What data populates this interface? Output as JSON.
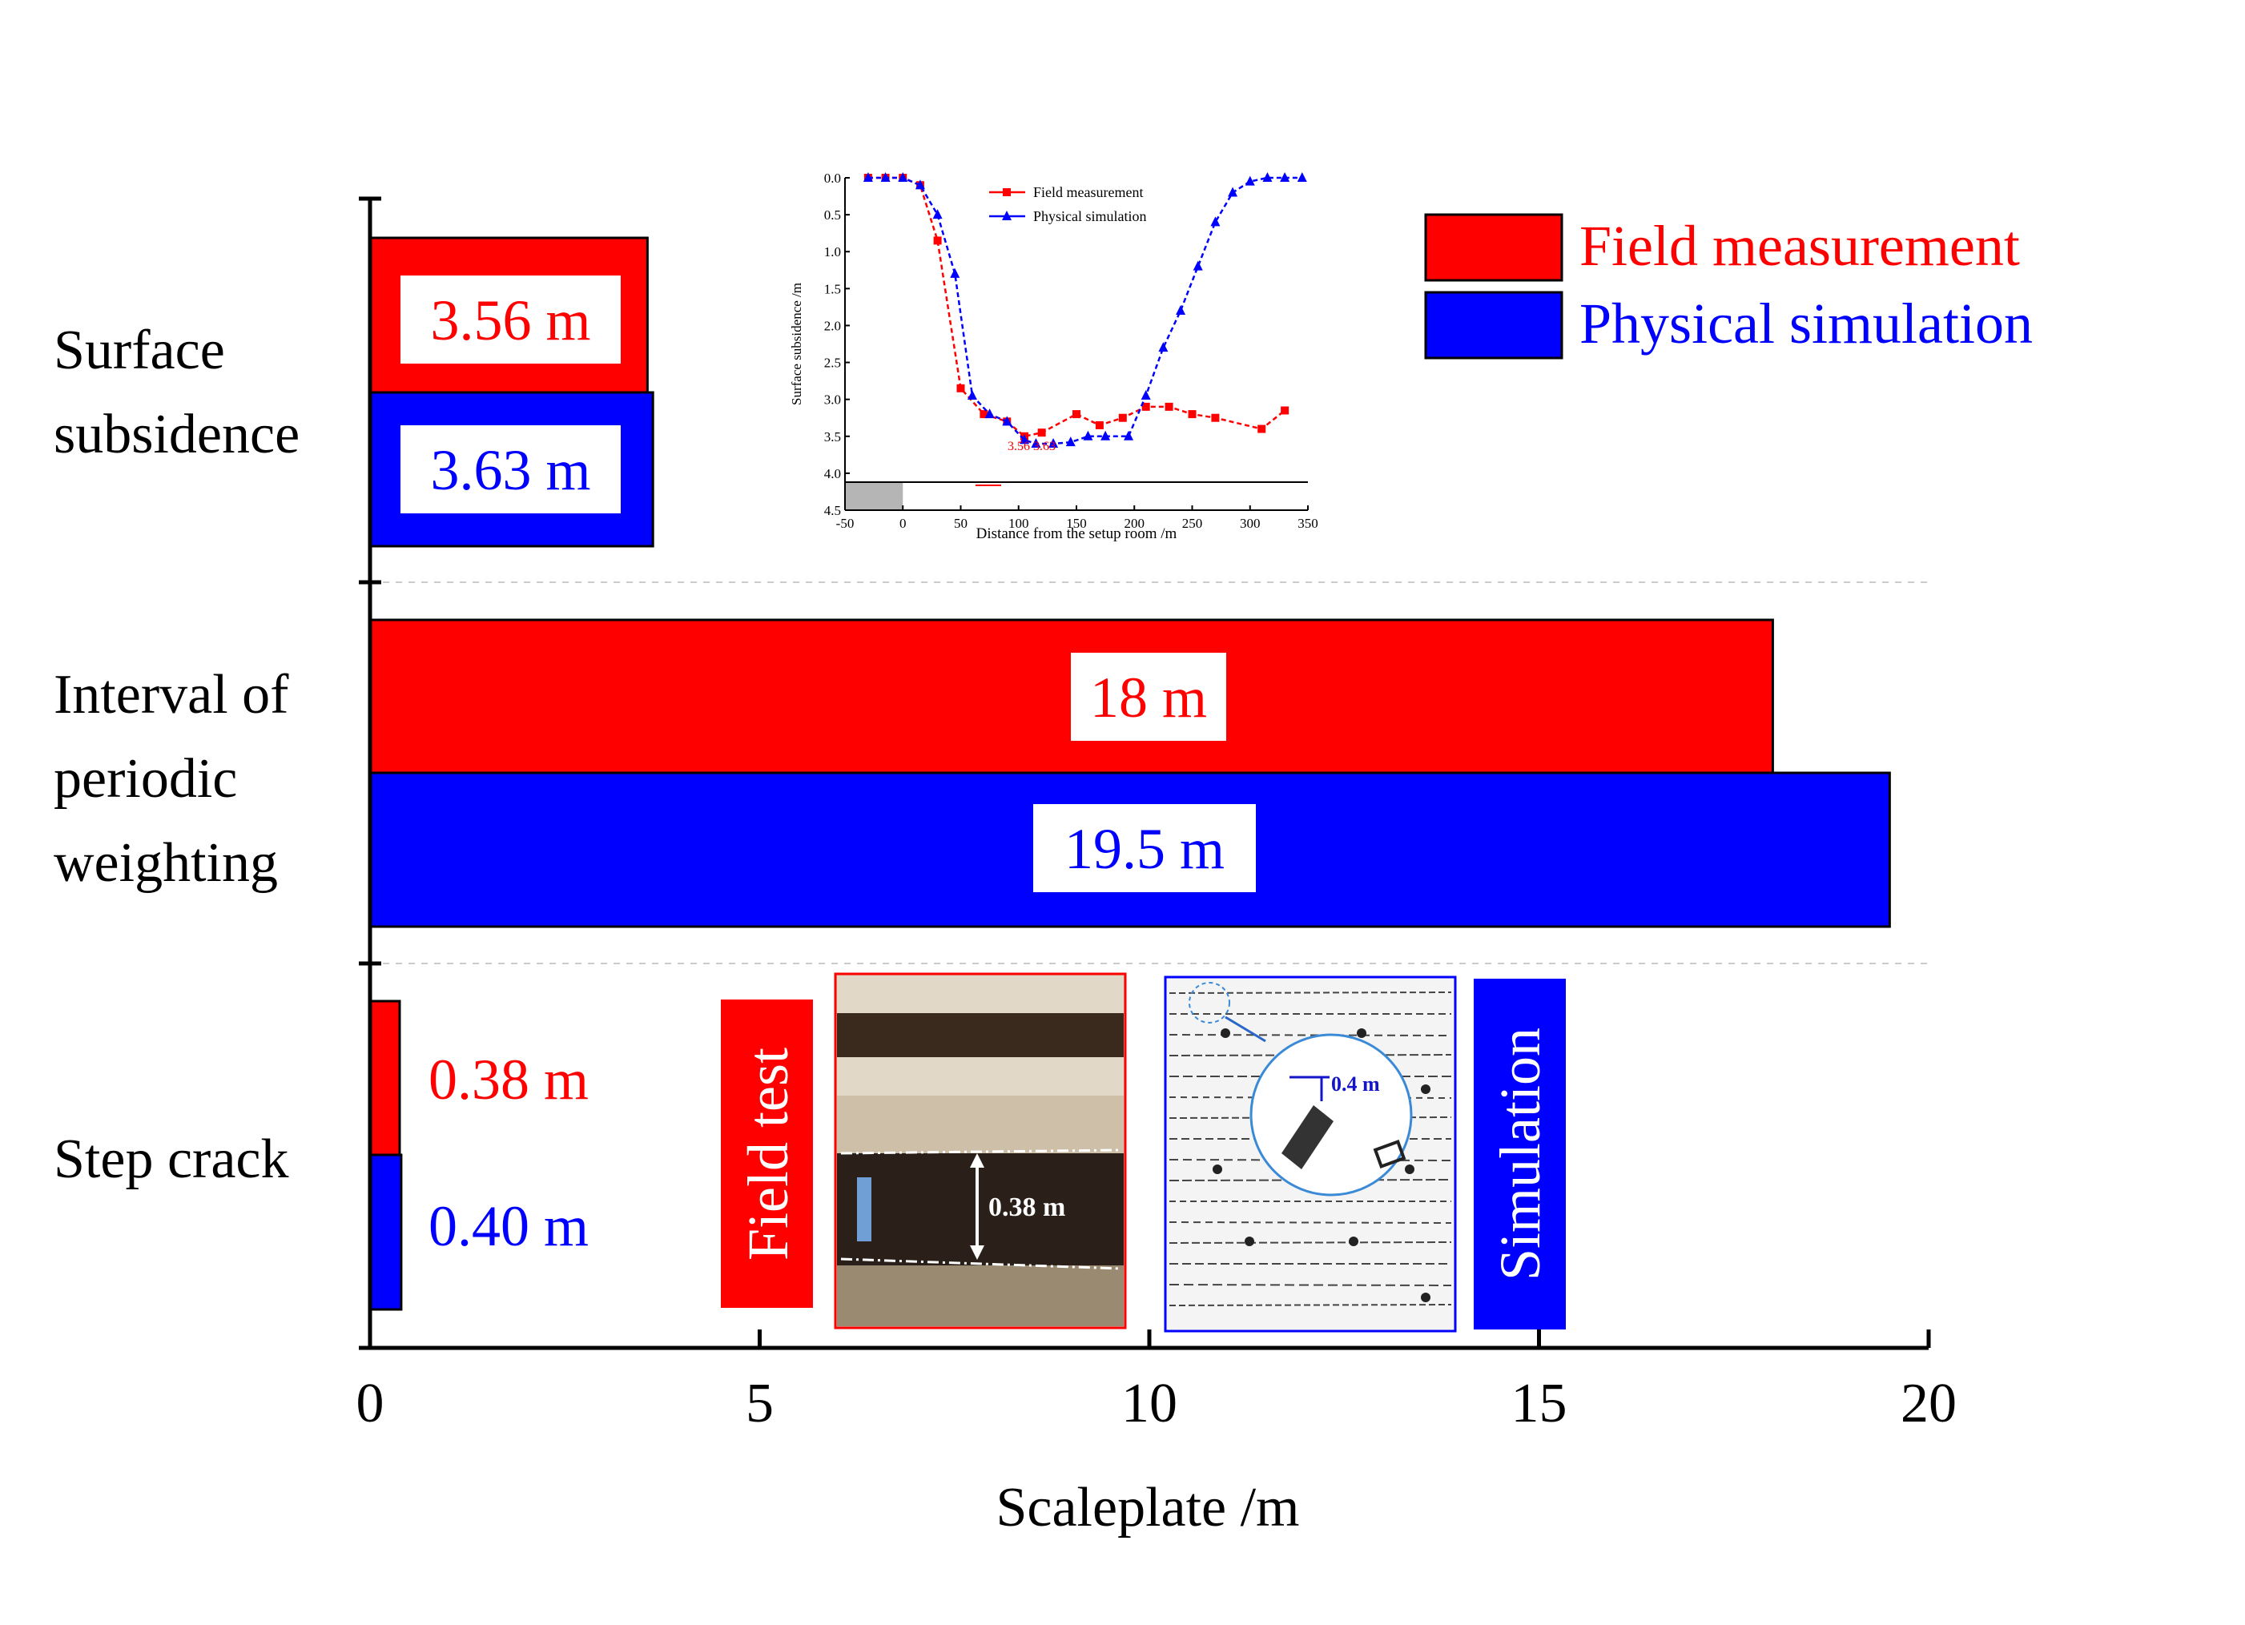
{
  "colors": {
    "field": "#ff0000",
    "simulation": "#0000ff",
    "axis": "#000000",
    "label_box": "#ffffff"
  },
  "chart_data": {
    "type": "bar",
    "orientation": "horizontal",
    "xlabel": "Scaleplate /m",
    "xlim": [
      0,
      20
    ],
    "xticks": [
      "0",
      "5",
      "10",
      "15",
      "20"
    ],
    "categories": [
      {
        "lines": [
          "Surface",
          "subsidence"
        ]
      },
      {
        "lines": [
          "Interval of",
          "periodic",
          "weighting"
        ]
      },
      {
        "lines": [
          "Step crack"
        ]
      }
    ],
    "series": [
      {
        "name": "Field measurement",
        "values": [
          3.56,
          18,
          0.38
        ],
        "labels": [
          "3.56 m",
          "18 m",
          "0.38 m"
        ]
      },
      {
        "name": "Physical simulation",
        "values": [
          3.63,
          19.5,
          0.4
        ],
        "labels": [
          "3.63 m",
          "19.5 m",
          "0.40 m"
        ]
      }
    ],
    "legend": {
      "position": "top-right"
    },
    "inset": {
      "type": "line",
      "xlabel": "Distance from the setup room /m",
      "ylabel": "Surface subsidence /m",
      "xlim": [
        -50,
        350
      ],
      "ylim": [
        0,
        4.5
      ],
      "xticks": [
        "-50",
        "0",
        "50",
        "100",
        "150",
        "200",
        "250",
        "300",
        "350"
      ],
      "yticks": [
        "0.0",
        "0.5",
        "1.0",
        "1.5",
        "2.0",
        "2.5",
        "3.0",
        "3.5",
        "4.0",
        "4.5"
      ],
      "annotation": "3.56 3.63",
      "series": [
        {
          "name": "Field measurement",
          "x": [
            -30,
            -15,
            0,
            15,
            30,
            50,
            70,
            90,
            105,
            120,
            150,
            170,
            190,
            210,
            230,
            250,
            270,
            310,
            330
          ],
          "y": [
            0,
            0,
            0,
            0.1,
            0.85,
            2.85,
            3.2,
            3.3,
            3.5,
            3.45,
            3.2,
            3.35,
            3.25,
            3.1,
            3.1,
            3.2,
            3.25,
            3.4,
            3.15
          ]
        },
        {
          "name": "Physical simulation",
          "x": [
            -30,
            -15,
            0,
            15,
            30,
            45,
            60,
            75,
            90,
            105,
            115,
            130,
            145,
            160,
            175,
            195,
            210,
            225,
            240,
            255,
            270,
            285,
            300,
            315,
            330,
            345
          ],
          "y": [
            0,
            0,
            0,
            0.1,
            0.5,
            1.3,
            2.95,
            3.2,
            3.3,
            3.55,
            3.6,
            3.6,
            3.58,
            3.5,
            3.5,
            3.5,
            2.95,
            2.3,
            1.8,
            1.2,
            0.6,
            0.2,
            0.05,
            0,
            0,
            0
          ]
        }
      ]
    },
    "photos": {
      "field_label": "Field test",
      "field_measure": "0.38 m",
      "sim_label": "Simulation",
      "sim_measure": "0.4 m"
    }
  }
}
